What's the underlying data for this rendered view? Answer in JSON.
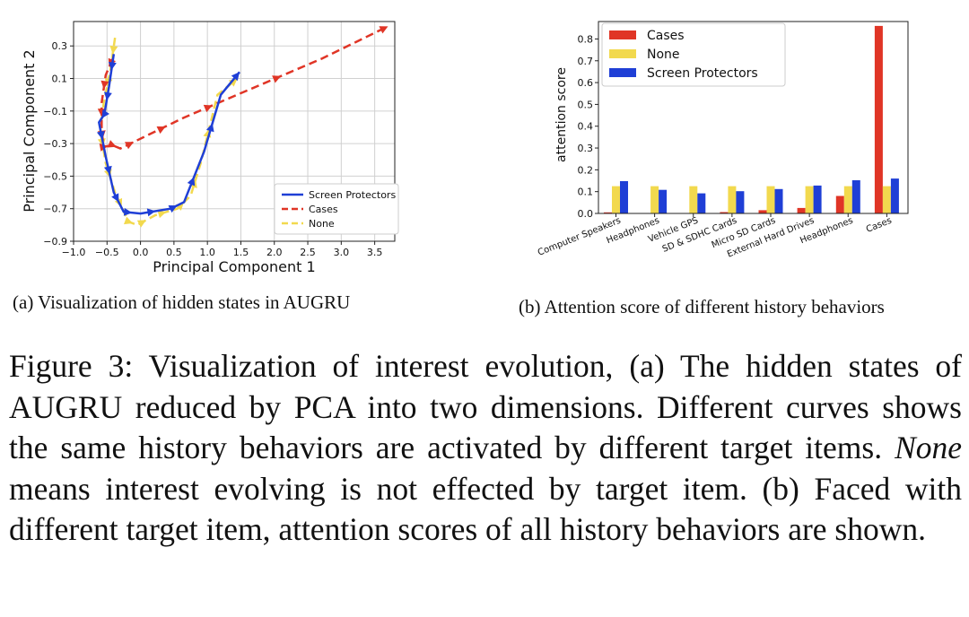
{
  "figures": {
    "a": {
      "caption": "(a) Visualization of hidden states in AUGRU"
    },
    "b": {
      "caption": "(b) Attention score of different history behaviors"
    }
  },
  "figure_caption": {
    "prefix": "Figure 3: Visualization of interest evolution, (a) The hidden states of AUGRU reduced by PCA into two dimensions. Different curves shows the same history behaviors are activated by different target items. ",
    "emph": "None",
    "suffix": " means interest evolving is not effected by target item. (b) Faced with different target item, attention scores of all history behaviors are shown."
  },
  "colors": {
    "screen_protectors": "#1f3fd6",
    "cases": "#e03526",
    "none": "#f2d94e"
  },
  "chart_data": [
    {
      "type": "line",
      "xlabel": "Principal Component 1",
      "ylabel": "Principal Component 2",
      "xlim": [
        -1.0,
        3.8
      ],
      "ylim": [
        -0.9,
        0.45
      ],
      "xticks": [
        "−1.0",
        "−0.5",
        "0.0",
        "0.5",
        "1.0",
        "1.5",
        "2.0",
        "2.5",
        "3.0",
        "3.5"
      ],
      "xtick_values": [
        -1.0,
        -0.5,
        0.0,
        0.5,
        1.0,
        1.5,
        2.0,
        2.5,
        3.0,
        3.5
      ],
      "yticks": [
        "0.3",
        "0.1",
        "−0.1",
        "−0.3",
        "−0.5",
        "−0.7",
        "−0.9"
      ],
      "ytick_values": [
        0.3,
        0.1,
        -0.1,
        -0.3,
        -0.5,
        -0.7,
        -0.9
      ],
      "grid": true,
      "legend_position": "bottom-right",
      "series": [
        {
          "name": "Screen Protectors",
          "color": "#1f3fd6",
          "dash": "solid",
          "points": [
            [
              -0.4,
              0.25
            ],
            [
              -0.47,
              0.05
            ],
            [
              -0.54,
              -0.12
            ],
            [
              -0.62,
              -0.17
            ],
            [
              -0.52,
              -0.38
            ],
            [
              -0.4,
              -0.6
            ],
            [
              -0.25,
              -0.72
            ],
            [
              0.0,
              -0.73
            ],
            [
              0.45,
              -0.7
            ],
            [
              0.65,
              -0.66
            ],
            [
              0.95,
              -0.35
            ],
            [
              1.2,
              0.0
            ],
            [
              1.48,
              0.14
            ]
          ]
        },
        {
          "name": "Cases",
          "color": "#e03526",
          "dash": "dashed",
          "points": [
            [
              -0.42,
              0.22
            ],
            [
              -0.52,
              0.12
            ],
            [
              -0.58,
              -0.05
            ],
            [
              -0.58,
              -0.22
            ],
            [
              -0.55,
              -0.32
            ],
            [
              -0.42,
              -0.31
            ],
            [
              -0.3,
              -0.33
            ],
            [
              0.1,
              -0.25
            ],
            [
              0.65,
              -0.14
            ],
            [
              1.5,
              0.01
            ],
            [
              2.7,
              0.22
            ],
            [
              3.7,
              0.42
            ]
          ]
        },
        {
          "name": "None",
          "color": "#f2d94e",
          "dash": "dashed",
          "points": [
            [
              -0.38,
              0.35
            ],
            [
              -0.45,
              0.15
            ],
            [
              -0.55,
              -0.05
            ],
            [
              -0.6,
              -0.22
            ],
            [
              -0.52,
              -0.42
            ],
            [
              -0.38,
              -0.6
            ],
            [
              -0.18,
              -0.78
            ],
            [
              -0.05,
              -0.8
            ],
            [
              0.22,
              -0.74
            ],
            [
              0.55,
              -0.7
            ],
            [
              0.75,
              -0.62
            ],
            [
              0.9,
              -0.42
            ],
            [
              1.15,
              0.0
            ],
            [
              1.45,
              0.1
            ]
          ]
        }
      ]
    },
    {
      "type": "bar",
      "xlabel": "",
      "ylabel": "attention score",
      "ylim": [
        0,
        0.88
      ],
      "yticks": [
        "0.0",
        "0.1",
        "0.2",
        "0.3",
        "0.4",
        "0.5",
        "0.6",
        "0.7",
        "0.8"
      ],
      "ytick_values": [
        0,
        0.1,
        0.2,
        0.3,
        0.4,
        0.5,
        0.6,
        0.7,
        0.8
      ],
      "grid": false,
      "legend_position": "top-left",
      "categories": [
        "Computer Speakers",
        "Headphones",
        "Vehicle GPS",
        "SD & SDHC Cards",
        "Micro SD Cards",
        "External Hard Drives",
        "Headphones",
        "Cases"
      ],
      "series": [
        {
          "name": "Cases",
          "color": "#e03526",
          "values": [
            0.005,
            0.002,
            0.002,
            0.006,
            0.015,
            0.025,
            0.08,
            0.86
          ]
        },
        {
          "name": "None",
          "color": "#f2d94e",
          "values": [
            0.125,
            0.125,
            0.125,
            0.125,
            0.125,
            0.125,
            0.125,
            0.125
          ]
        },
        {
          "name": "Screen Protectors",
          "color": "#1f3fd6",
          "values": [
            0.148,
            0.108,
            0.092,
            0.102,
            0.112,
            0.128,
            0.152,
            0.16
          ]
        }
      ]
    }
  ]
}
